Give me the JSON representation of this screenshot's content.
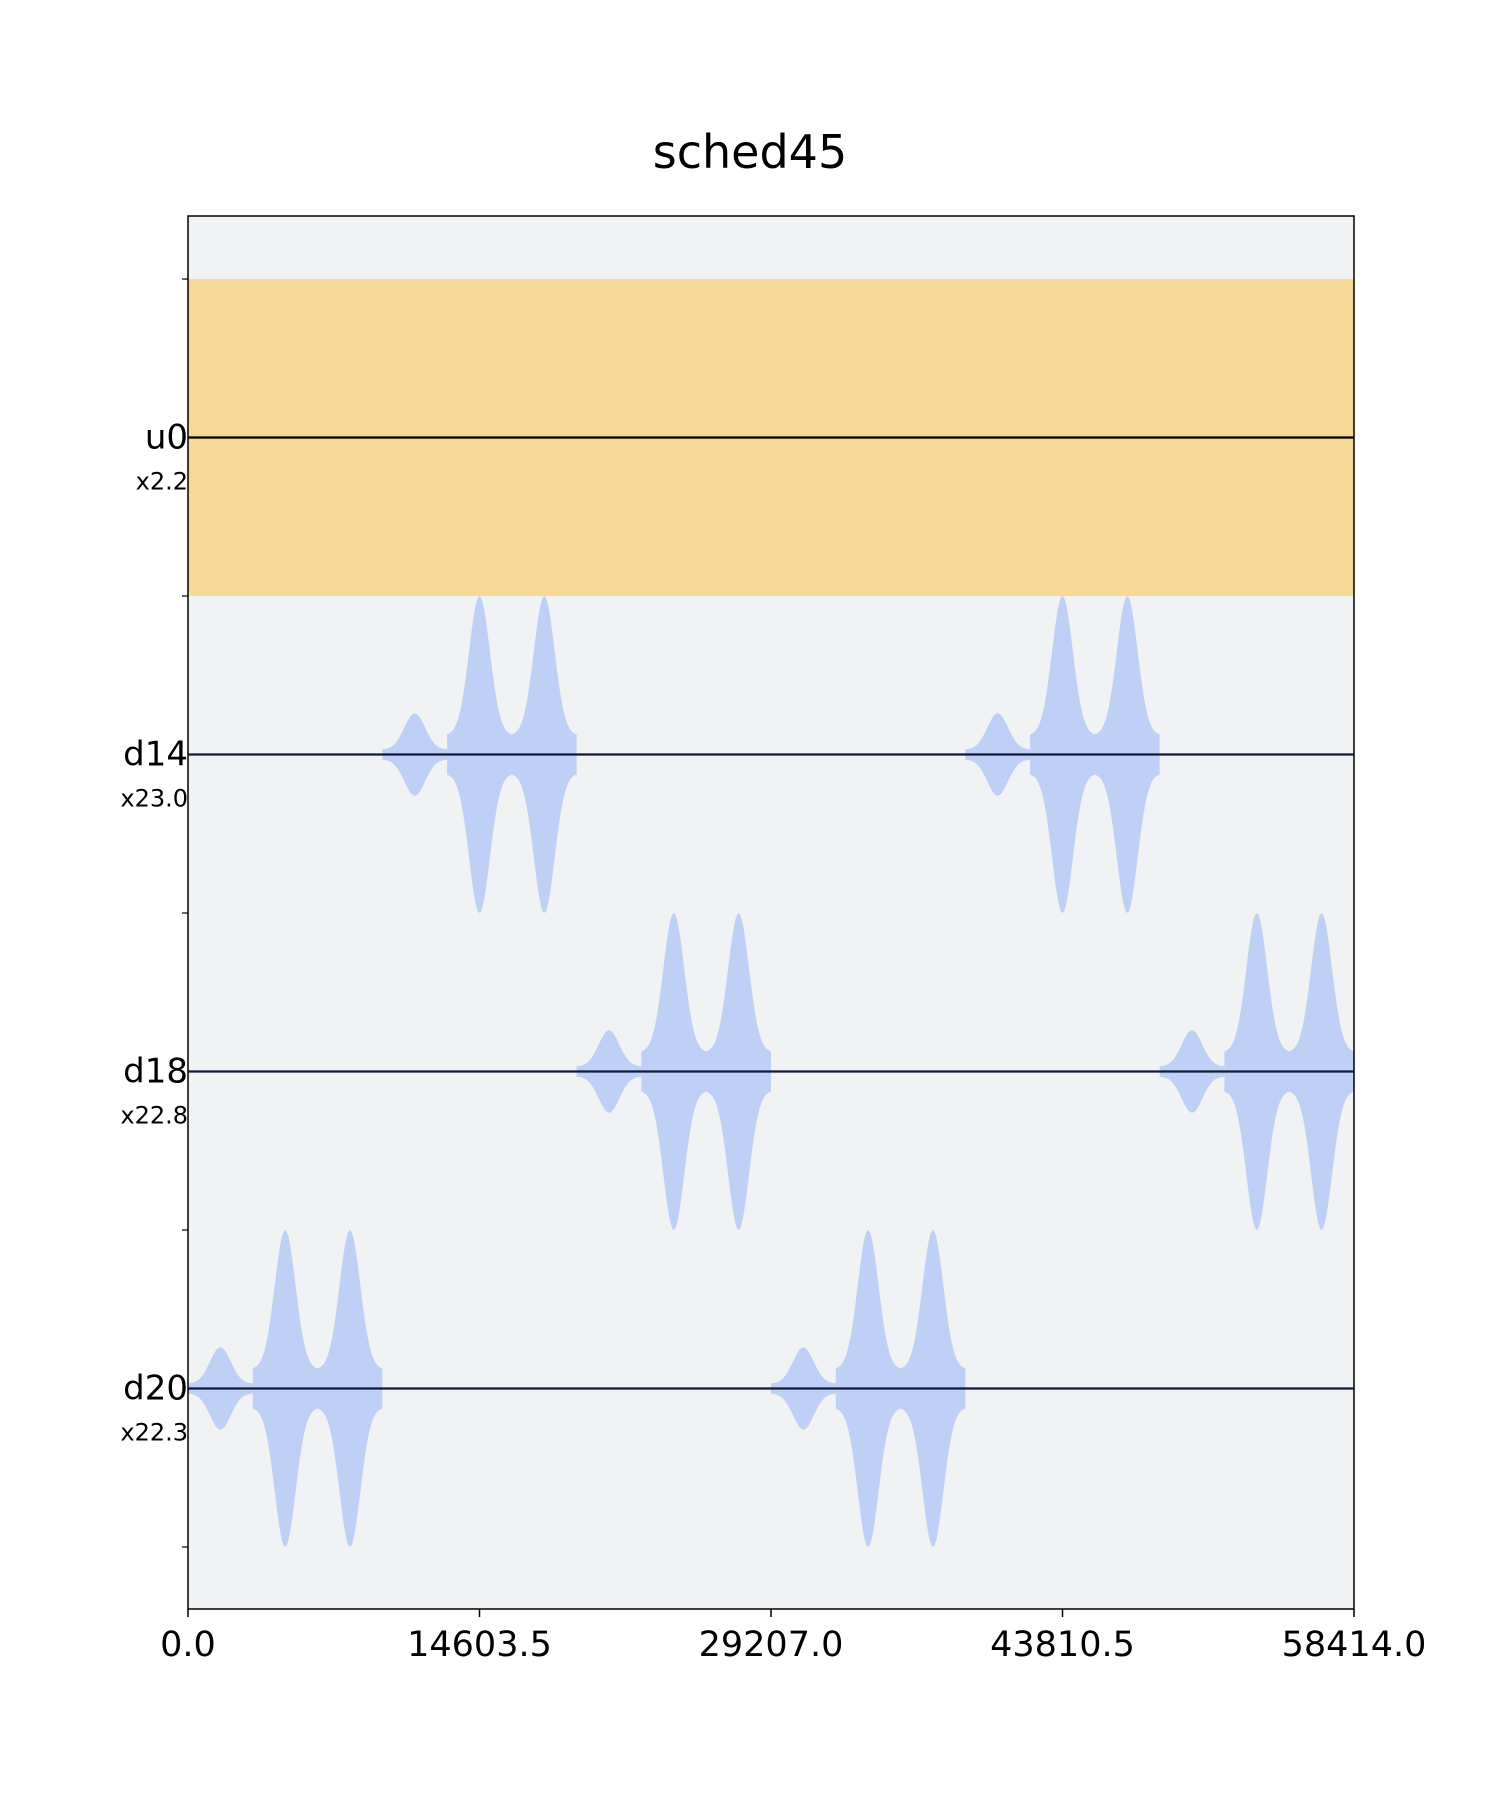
{
  "chart_data": {
    "type": "pulse_schedule",
    "title": "sched45",
    "xlabel": "",
    "ylabel": "",
    "xlim": [
      0.0,
      58414.0
    ],
    "xticks": [
      0.0,
      14603.5,
      29207.0,
      43810.5,
      58414.0
    ],
    "xtick_labels": [
      "0.0",
      "14603.5",
      "29207.0",
      "43810.5",
      "58414.0"
    ],
    "grid": false,
    "channels": [
      {
        "name": "u0",
        "scale": "x2.2",
        "kind": "control"
      },
      {
        "name": "d14",
        "scale": "x23.0",
        "kind": "drive"
      },
      {
        "name": "d18",
        "scale": "x22.8",
        "kind": "drive"
      },
      {
        "name": "d20",
        "scale": "x22.3",
        "kind": "drive"
      }
    ],
    "u0_band": {
      "start": 0.0,
      "end": 58414.0,
      "amplitude": 1.0
    },
    "pulses": [
      {
        "channel": "d20",
        "start": 0,
        "end": 3245,
        "amplitude": 0.26
      },
      {
        "channel": "d20",
        "start": 3245,
        "end": 6490,
        "amplitude": 1.0
      },
      {
        "channel": "d20",
        "start": 6490,
        "end": 9735,
        "amplitude": 1.0
      },
      {
        "channel": "d14",
        "start": 9735,
        "end": 12980,
        "amplitude": 0.26
      },
      {
        "channel": "d14",
        "start": 12980,
        "end": 16225,
        "amplitude": 1.0
      },
      {
        "channel": "d14",
        "start": 16225,
        "end": 19470,
        "amplitude": 1.0
      },
      {
        "channel": "d18",
        "start": 19470,
        "end": 22715,
        "amplitude": 0.26
      },
      {
        "channel": "d18",
        "start": 22715,
        "end": 25960,
        "amplitude": 1.0
      },
      {
        "channel": "d18",
        "start": 25960,
        "end": 29207,
        "amplitude": 1.0
      },
      {
        "channel": "d20",
        "start": 29207,
        "end": 32452,
        "amplitude": 0.26
      },
      {
        "channel": "d20",
        "start": 32452,
        "end": 35697,
        "amplitude": 1.0
      },
      {
        "channel": "d20",
        "start": 35697,
        "end": 38942,
        "amplitude": 1.0
      },
      {
        "channel": "d14",
        "start": 38942,
        "end": 42187,
        "amplitude": 0.26
      },
      {
        "channel": "d14",
        "start": 42187,
        "end": 45432,
        "amplitude": 1.0
      },
      {
        "channel": "d14",
        "start": 45432,
        "end": 48677,
        "amplitude": 1.0
      },
      {
        "channel": "d18",
        "start": 48677,
        "end": 51922,
        "amplitude": 0.26
      },
      {
        "channel": "d18",
        "start": 51922,
        "end": 55167,
        "amplitude": 1.0
      },
      {
        "channel": "d18",
        "start": 55167,
        "end": 58414,
        "amplitude": 1.0
      }
    ],
    "colors": {
      "background": "#f1f2f4",
      "u0_band": "#f5d998",
      "pulse": "#bccdf6",
      "baseline": "#0f1a3a",
      "frame": "#000000"
    }
  }
}
